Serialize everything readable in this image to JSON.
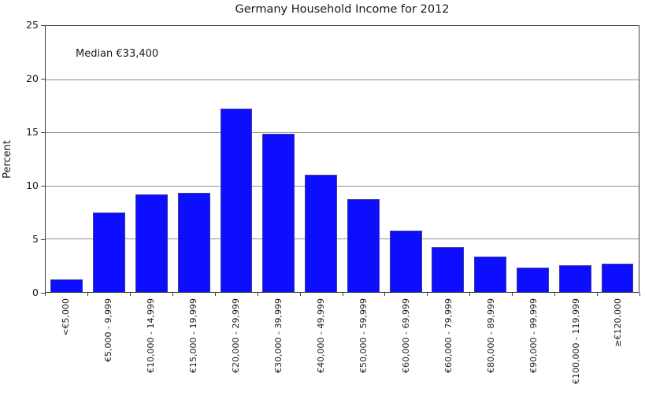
{
  "figure": {
    "title": "Germany Household Income for 2012",
    "annotation": "Median €33,400",
    "ylabel": "Percent"
  },
  "chart_data": {
    "type": "bar",
    "title": "Germany Household Income for 2012",
    "annotation": "Median €33,400",
    "xlabel": "",
    "ylabel": "Percent",
    "ylim": [
      0,
      25
    ],
    "yticks": [
      0,
      5,
      10,
      15,
      20,
      25
    ],
    "grid": "horizontal gridlines at 5, 10, 15, 20",
    "legend": "none",
    "categories": [
      "<€5,000",
      "€5,000 - 9,999",
      "€10,000 - 14,999",
      "€15,000 - 19,999",
      "€20,000 - 29,999",
      "€30,000 - 39,999",
      "€40,000 - 49,999",
      "€50,000 - 59,999",
      "€60,000 - 69,999",
      "€60,000 - 79,999",
      "€80,000 - 89,999",
      "€90,000 - 99,999",
      "€100,000 - 119,999",
      "≥€120,000"
    ],
    "values": [
      1.2,
      7.5,
      9.2,
      9.3,
      17.2,
      14.9,
      11.0,
      8.7,
      5.8,
      4.2,
      3.3,
      2.3,
      2.5,
      2.7
    ],
    "colors": {
      "bar_fill": "#0d0dff",
      "bar_edge": "#3c3ca0",
      "grid_line": "#909090",
      "axis_frame": "#404040",
      "text": "#1a1a1a"
    }
  }
}
